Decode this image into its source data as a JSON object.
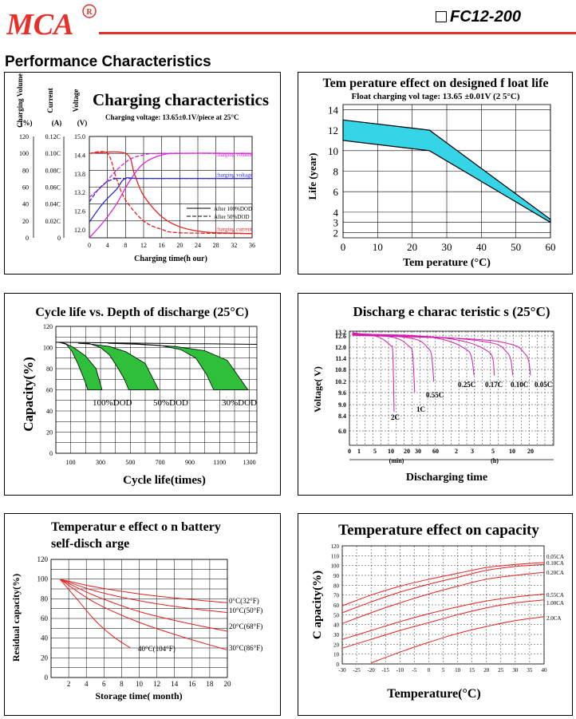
{
  "brand": {
    "logo_text": "MCA",
    "registered_mark": "R"
  },
  "header": {
    "model": "FC12-200",
    "section_title": "Performance Characteristics"
  },
  "colors": {
    "brand_red": "#e8302a",
    "cyan_band": "#35d4e6",
    "green_band": "#2fbf3a",
    "magenta": "#e020e0",
    "blue": "#2a2ae0",
    "red": "#e82020"
  },
  "chart_data": [
    {
      "id": "charging",
      "type": "line",
      "title": "Charging characteristics",
      "subtitle": "Charging voltage:   13.65±0.1V/piece   at 25°C",
      "xlabel": "Charging time(h  our)",
      "axis_headers": [
        {
          "label": "Charging Volume",
          "unit": "(%)"
        },
        {
          "label": "Current",
          "unit": "(A)"
        },
        {
          "label": "Voltage",
          "unit": "(V)"
        }
      ],
      "x_ticks": [
        "0",
        "4",
        "8",
        "12",
        "16",
        "20",
        "24",
        "28",
        "32",
        "36"
      ],
      "y_ticks_volume": [
        "0",
        "20",
        "40",
        "60",
        "80",
        "100",
        "120"
      ],
      "y_ticks_current": [
        "0",
        "0.02C",
        "0.04C",
        "0.06C",
        "0.08C",
        "0.10C",
        "0.12C"
      ],
      "y_ticks_voltage": [
        "12.0",
        "12.6",
        "13.2",
        "13.8",
        "14.4",
        "15.0"
      ],
      "xlim": [
        0,
        36
      ],
      "volume_ylim": [
        0,
        120
      ],
      "series_labels": [
        "charging volume",
        "charging voltage",
        "charging current"
      ],
      "legend": [
        "After 100%DOD",
        "After 50%DOD"
      ],
      "series": [
        {
          "name": "charging volume",
          "dod": "100%",
          "x": [
            0,
            3,
            6,
            9,
            12,
            16,
            20,
            36
          ],
          "y": [
            0,
            18,
            40,
            68,
            88,
            98,
            100,
            100
          ]
        },
        {
          "name": "charging volume",
          "dod": "50%",
          "x": [
            0,
            3,
            6,
            9,
            12,
            16,
            36
          ],
          "y": [
            48,
            62,
            80,
            93,
            98,
            100,
            100
          ]
        },
        {
          "name": "charging voltage",
          "dod": "100%",
          "x": [
            0,
            3,
            6,
            8,
            12,
            36
          ],
          "y": [
            12.25,
            12.85,
            13.3,
            13.65,
            13.65,
            13.65
          ]
        },
        {
          "name": "charging voltage",
          "dod": "50%",
          "x": [
            0,
            2,
            4,
            6,
            8,
            36
          ],
          "y": [
            12.9,
            13.3,
            13.55,
            13.65,
            13.65,
            13.65
          ]
        },
        {
          "name": "charging current",
          "dod": "100%",
          "x": [
            0,
            8,
            10,
            12,
            16,
            20,
            24,
            28,
            36
          ],
          "y": [
            0.1,
            0.1,
            0.075,
            0.05,
            0.025,
            0.013,
            0.008,
            0.006,
            0.005
          ]
        },
        {
          "name": "charging current",
          "dod": "50%",
          "x": [
            0,
            4,
            6,
            8,
            12,
            16,
            20,
            36
          ],
          "y": [
            0.1,
            0.1,
            0.07,
            0.045,
            0.02,
            0.01,
            0.006,
            0.005
          ]
        }
      ]
    },
    {
      "id": "float-life",
      "type": "area",
      "title": "Tem perature effect on designed f loat life",
      "subtitle": "Float charging vol tage: 13.65 ±0.01V (2 5°C)",
      "xlabel": "Tem perature (°C)",
      "ylabel": "Life (year)",
      "x_ticks": [
        "0",
        "10",
        "20",
        "30",
        "40",
        "50",
        "60"
      ],
      "y_ticks": [
        "2",
        "3",
        "4",
        "6",
        "8",
        "10",
        "12",
        "14"
      ],
      "xlim": [
        0,
        60
      ],
      "ylim": [
        1.5,
        14.5
      ],
      "band": {
        "x": [
          0,
          25,
          60
        ],
        "upper": [
          13.0,
          12.0,
          3.3
        ],
        "lower": [
          11.0,
          10.0,
          3.0
        ]
      }
    },
    {
      "id": "cycle-life",
      "type": "line",
      "title": "Cycle life vs. Depth of discharge (25°C)",
      "xlabel": "Cycle life(times)",
      "ylabel": "Capacity(%)",
      "x_ticks": [
        "100",
        "300",
        "500",
        "700",
        "900",
        "1100",
        "1300"
      ],
      "y_ticks": [
        "0",
        "20",
        "40",
        "60",
        "80",
        "100",
        "120"
      ],
      "xlim": [
        0,
        1350
      ],
      "ylim": [
        0,
        120
      ],
      "band_labels": [
        "100%DOD",
        "50%DOD",
        "30%DOD"
      ],
      "bands": [
        {
          "name": "100%DOD",
          "top": [
            [
              10,
              105
            ],
            [
              60,
              104
            ],
            [
              120,
              100
            ],
            [
              200,
              92
            ],
            [
              270,
              80
            ],
            [
              310,
              60
            ]
          ],
          "bottom": [
            [
              20,
              105
            ],
            [
              70,
              103
            ],
            [
              110,
              96
            ],
            [
              150,
              84
            ],
            [
              190,
              70
            ],
            [
              215,
              60
            ]
          ]
        },
        {
          "name": "50%DOD",
          "top": [
            [
              150,
              104
            ],
            [
              250,
              103
            ],
            [
              360,
              101
            ],
            [
              470,
              96
            ],
            [
              600,
              85
            ],
            [
              690,
              60
            ]
          ],
          "bottom": [
            [
              220,
              104
            ],
            [
              300,
              100
            ],
            [
              360,
              93
            ],
            [
              420,
              80
            ],
            [
              460,
              70
            ],
            [
              490,
              60
            ]
          ]
        },
        {
          "name": "30%DOD",
          "top": [
            [
              350,
              104
            ],
            [
              550,
              103
            ],
            [
              800,
              101
            ],
            [
              1000,
              97
            ],
            [
              1150,
              88
            ],
            [
              1290,
              60
            ]
          ],
          "bottom": [
            [
              480,
              104
            ],
            [
              700,
              102
            ],
            [
              840,
              98
            ],
            [
              940,
              90
            ],
            [
              1010,
              75
            ],
            [
              1060,
              60
            ]
          ]
        }
      ]
    },
    {
      "id": "discharge",
      "type": "line",
      "title": "Discharg e charac teristic s (25°C)",
      "xlabel": "Discharging time",
      "ylabel": "Voltage( V)",
      "y_ticks": [
        "6.0",
        "8.4",
        "9.0",
        "9.6",
        "10.2",
        "10.8",
        "11.4",
        "12.0",
        "12.6",
        "13.2"
      ],
      "x_ticks": [
        "0",
        "1",
        "5",
        "10",
        "20",
        "30",
        "60",
        "2",
        "3",
        "5",
        "10",
        "20"
      ],
      "x_units": [
        "(min)",
        "(h)"
      ],
      "series": [
        {
          "name": "2C",
          "end_min": 12,
          "end_v": 8.6
        },
        {
          "name": "1C",
          "end_min": 27,
          "end_v": 9.6
        },
        {
          "name": "0.55C",
          "end_min": 57,
          "end_v": 10.2
        },
        {
          "name": "0.25C",
          "end_min": 190,
          "end_v": 10.5
        },
        {
          "name": "0.17C",
          "end_min": 320,
          "end_v": 10.5
        },
        {
          "name": "0.10C",
          "end_min": 620,
          "end_v": 10.5
        },
        {
          "name": "0.05C",
          "end_min": 1220,
          "end_v": 10.5
        }
      ]
    },
    {
      "id": "self-discharge",
      "type": "line",
      "title_line1": "Temperatur e effect o n battery",
      "title_line2": "self-disch arge",
      "xlabel": "Storage time( month)",
      "ylabel": "Residual capacity(%)",
      "x_ticks": [
        "2",
        "4",
        "6",
        "8",
        "10",
        "12",
        "14",
        "16",
        "18",
        "20"
      ],
      "y_ticks": [
        "0",
        "20",
        "40",
        "60",
        "80",
        "100",
        "120"
      ],
      "xlim": [
        0,
        20
      ],
      "ylim": [
        0,
        120
      ],
      "series": [
        {
          "name": "0°C(32°F)",
          "x": [
            1,
            5,
            10,
            15,
            20
          ],
          "y": [
            100,
            92,
            85,
            80,
            76
          ]
        },
        {
          "name": "10°C(50°F)",
          "x": [
            1,
            5,
            10,
            15,
            20
          ],
          "y": [
            100,
            88,
            78,
            71,
            66
          ]
        },
        {
          "name": "20°C(68°F)",
          "x": [
            1,
            5,
            10,
            15,
            20
          ],
          "y": [
            100,
            83,
            67,
            56,
            47
          ]
        },
        {
          "name": "30°C(86°F)",
          "x": [
            1,
            5,
            10,
            15,
            20
          ],
          "y": [
            100,
            76,
            56,
            41,
            28
          ]
        },
        {
          "name": "40°C(104°F)",
          "x": [
            1,
            3,
            5,
            7,
            9
          ],
          "y": [
            100,
            79,
            58,
            42,
            30
          ]
        }
      ]
    },
    {
      "id": "temp-capacity",
      "type": "line",
      "title": "Temperature effect on capacity",
      "xlabel": "Temperature(°C)",
      "ylabel": "C apacity(%)",
      "x_ticks": [
        "-30",
        "-25",
        "-20",
        "-15",
        "-10",
        "-5",
        "0",
        "5",
        "10",
        "15",
        "20",
        "25",
        "30",
        "35",
        "40"
      ],
      "y_ticks": [
        "0",
        "10",
        "20",
        "30",
        "40",
        "50",
        "60",
        "70",
        "80",
        "90",
        "100",
        "110",
        "120"
      ],
      "xlim": [
        -30,
        40
      ],
      "ylim": [
        0,
        120
      ],
      "series": [
        {
          "name": "0.05CA",
          "x": [
            -30,
            -20,
            -10,
            0,
            10,
            20,
            30,
            40
          ],
          "y": [
            59,
            70,
            79,
            86,
            92,
            98,
            101,
            103
          ]
        },
        {
          "name": "0.10CA",
          "x": [
            -30,
            -20,
            -10,
            0,
            10,
            20,
            30,
            40
          ],
          "y": [
            52,
            63,
            73,
            81,
            88,
            95,
            99,
            101
          ]
        },
        {
          "name": "0.20CA",
          "x": [
            -30,
            -20,
            -10,
            0,
            10,
            20,
            30,
            40
          ],
          "y": [
            41,
            52,
            62,
            71,
            79,
            86,
            90,
            93
          ]
        },
        {
          "name": "0.55CA",
          "x": [
            -30,
            -20,
            -10,
            0,
            10,
            20,
            30,
            40
          ],
          "y": [
            25,
            34,
            43,
            51,
            58,
            64,
            68,
            71
          ]
        },
        {
          "name": "1.00CA",
          "x": [
            -30,
            -20,
            -10,
            0,
            10,
            20,
            30,
            40
          ],
          "y": [
            16,
            25,
            34,
            42,
            50,
            57,
            62,
            65
          ]
        },
        {
          "name": "2.0CA",
          "x": [
            -20,
            -10,
            0,
            10,
            20,
            30,
            40
          ],
          "y": [
            1,
            12,
            22,
            31,
            38,
            44,
            48
          ]
        }
      ]
    }
  ]
}
